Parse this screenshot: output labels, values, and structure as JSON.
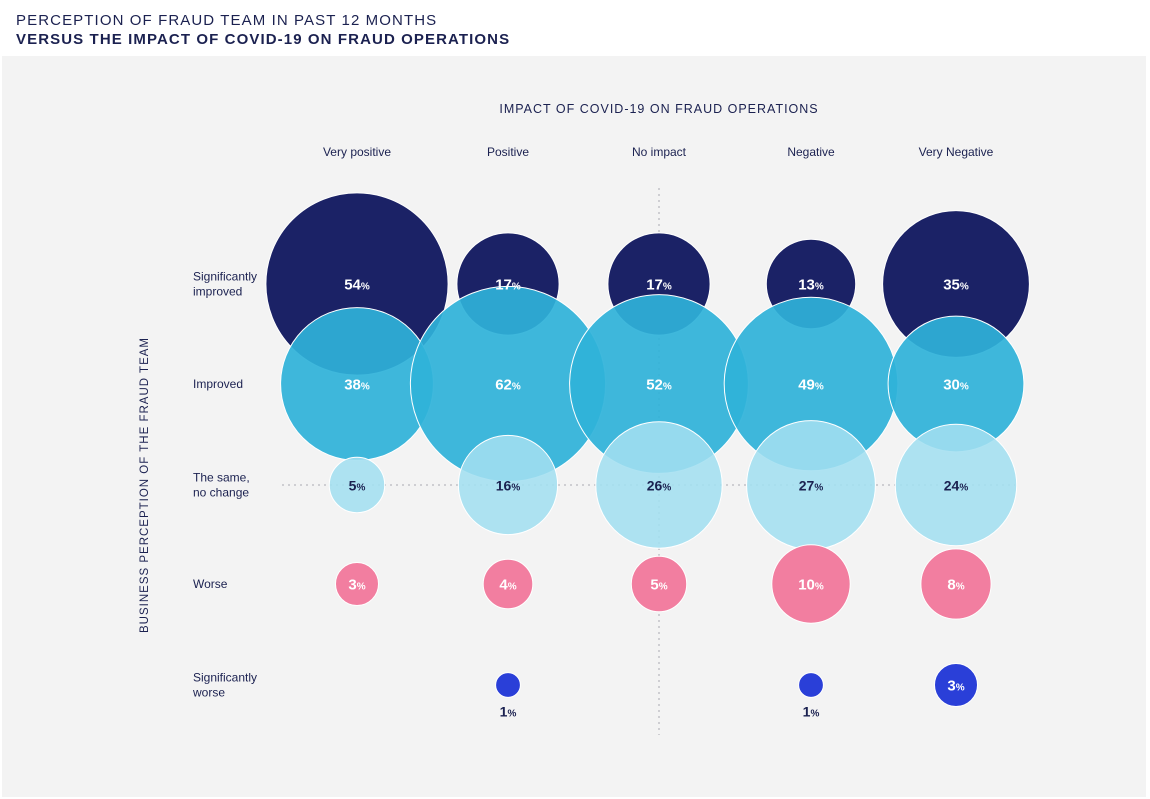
{
  "header": {
    "title_line1": "PERCEPTION OF FRAUD TEAM IN PAST 12 MONTHS",
    "title_line2": "VERSUS THE IMPACT OF COVID-19 ON FRAUD OPERATIONS"
  },
  "chart_data": {
    "type": "bubble",
    "xlabel": "IMPACT OF COVID-19 ON FRAUD OPERATIONS",
    "ylabel": "BUSINESS PERCEPTION OF THE FRAUD TEAM",
    "columns": [
      "Very positive",
      "Positive",
      "No impact",
      "Negative",
      "Very Negative"
    ],
    "rows": [
      {
        "label_lines": [
          "Significantly",
          "improved"
        ],
        "color": "#1b2266",
        "values": [
          54,
          17,
          17,
          13,
          35
        ]
      },
      {
        "label_lines": [
          "Improved"
        ],
        "color": "#2fb2d9",
        "values": [
          38,
          62,
          52,
          49,
          30
        ]
      },
      {
        "label_lines": [
          "The same,",
          "no change"
        ],
        "color": "#a3dff0",
        "values": [
          5,
          16,
          26,
          27,
          24
        ]
      },
      {
        "label_lines": [
          "Worse"
        ],
        "color": "#f27ea0",
        "values": [
          3,
          4,
          5,
          10,
          8
        ]
      },
      {
        "label_lines": [
          "Significantly",
          "worse"
        ],
        "color": "#2a3fd8",
        "values": [
          null,
          1,
          null,
          1,
          3
        ]
      }
    ],
    "value_suffix": "%",
    "grid": "dotted center crosshair"
  }
}
